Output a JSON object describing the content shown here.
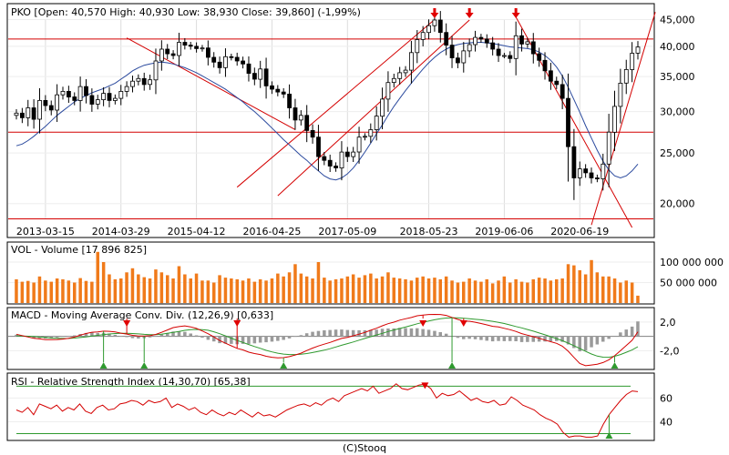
{
  "symbol": "PKO",
  "footer": "(C)Stooq",
  "chart_data": [
    {
      "type": "candlestick",
      "title": "PKO [Open: 40,570  High: 40,930  Low: 38,930  Close: 39,860] (-1,99%)",
      "x_ticks": [
        "2013-03-15",
        "2014-03-29",
        "2015-04-12",
        "2016-04-25",
        "2017-05-09",
        "2018-05-23",
        "2019-06-06",
        "2020-06-19"
      ],
      "y_ticks": [
        "20000",
        "25000",
        "30000",
        "35000",
        "40000",
        "45000"
      ],
      "y_tick_labels": [
        "20,000",
        "25,000",
        "30,000",
        "35,000",
        "40,000",
        "45,000"
      ],
      "y_scale": "log",
      "ylim": [
        18000,
        47500
      ],
      "horizontal_levels": [
        41300,
        27400,
        18700
      ],
      "candles_close": [
        29800,
        29200,
        30500,
        29000,
        31500,
        30800,
        30200,
        32300,
        32800,
        32000,
        31500,
        33500,
        32200,
        31000,
        31600,
        32500,
        31500,
        31800,
        32800,
        33500,
        34300,
        34700,
        33800,
        34500,
        37500,
        39500,
        38700,
        38400,
        40700,
        40200,
        40000,
        39600,
        39700,
        38100,
        37300,
        36400,
        38200,
        38100,
        37500,
        37000,
        35500,
        34600,
        36200,
        33600,
        33100,
        32700,
        32400,
        30500,
        28900,
        29500,
        27600,
        26800,
        24600,
        24200,
        23600,
        23400,
        25100,
        24600,
        25100,
        26800,
        26900,
        27700,
        29400,
        31700,
        34100,
        34700,
        35600,
        36000,
        38900,
        41200,
        42500,
        43800,
        44900,
        42500,
        40200,
        38000,
        37200,
        39200,
        40300,
        41600,
        41300,
        40600,
        39500,
        38400,
        38400,
        37900,
        41900,
        40400,
        40800,
        38700,
        37600,
        35900,
        34300,
        33800,
        31800,
        25700,
        22400,
        23300,
        22900,
        22400,
        22300,
        23800,
        27400,
        30700,
        34000,
        36100,
        38800,
        39860
      ],
      "series": [
        {
          "name": "MA",
          "values": [
            25800,
            26000,
            26400,
            26900,
            27500,
            28100,
            28800,
            29500,
            30100,
            30700,
            31300,
            31800,
            32200,
            32600,
            32900,
            33200,
            33600,
            34000,
            34600,
            35200,
            35900,
            36400,
            36800,
            37000,
            37200,
            37300,
            37200,
            37000,
            36700,
            36400,
            36000,
            35600,
            35100,
            34600,
            34100,
            33600,
            33100,
            32500,
            31900,
            31300,
            30600,
            30000,
            29300,
            28600,
            27900,
            27200,
            26500,
            25900,
            25300,
            24700,
            24200,
            23600,
            23100,
            22600,
            22300,
            22200,
            22400,
            22800,
            23400,
            24200,
            25100,
            26100,
            27200,
            28300,
            29500,
            30700,
            31800,
            32900,
            34000,
            35100,
            36200,
            37200,
            38100,
            38900,
            39500,
            40000,
            40300,
            40500,
            40600,
            40700,
            40700,
            40600,
            40500,
            40300,
            40100,
            39900,
            39800,
            39700,
            39600,
            39400,
            39000,
            38400,
            37600,
            36500,
            35100,
            33400,
            31600,
            29900,
            28200,
            26700,
            25300,
            24100,
            23200,
            22600,
            22400,
            22600,
            23100,
            23800
          ]
        }
      ],
      "trendlines": [
        {
          "from_index": 19,
          "from_value": 41500,
          "to_index": 48,
          "to_value": 27700
        },
        {
          "from_index": 38,
          "from_value": 21500,
          "to_index": 72,
          "to_value": 45000
        },
        {
          "from_index": 45,
          "from_value": 20700,
          "to_index": 78,
          "to_value": 44900
        },
        {
          "from_index": 86,
          "from_value": 45500,
          "to_index": 106,
          "to_value": 18000
        },
        {
          "from_index": 99,
          "from_value": 18200,
          "to_index": 110,
          "to_value": 46500
        }
      ],
      "markers": [
        {
          "index": 72,
          "shape": "down-arrow"
        },
        {
          "index": 78,
          "shape": "down-arrow"
        },
        {
          "index": 86,
          "shape": "down-arrow"
        }
      ],
      "colors": {
        "up": "#ffffff",
        "down": "#000000",
        "ma": "#2b4a9e",
        "trend": "#d40000",
        "level": "#d40000",
        "marker": "#e00000"
      }
    },
    {
      "type": "bar",
      "title": "VOL - Volume [17 896 825]",
      "y_ticks": [
        50000000,
        100000000
      ],
      "y_tick_labels": [
        "50 000 000",
        "100 000 000"
      ],
      "ylim": [
        0,
        140000000
      ],
      "values": [
        58000000,
        52000000,
        54000000,
        50000000,
        65000000,
        55000000,
        52000000,
        60000000,
        58000000,
        55000000,
        50000000,
        61000000,
        54000000,
        52000000,
        125000000,
        100000000,
        70000000,
        58000000,
        60000000,
        75000000,
        85000000,
        70000000,
        63000000,
        60000000,
        82000000,
        75000000,
        68000000,
        60000000,
        90000000,
        70000000,
        60000000,
        72000000,
        55000000,
        55000000,
        50000000,
        68000000,
        62000000,
        60000000,
        58000000,
        55000000,
        60000000,
        52000000,
        58000000,
        55000000,
        60000000,
        72000000,
        65000000,
        75000000,
        95000000,
        72000000,
        65000000,
        60000000,
        100000000,
        62000000,
        55000000,
        58000000,
        60000000,
        65000000,
        70000000,
        62000000,
        68000000,
        72000000,
        60000000,
        65000000,
        75000000,
        62000000,
        60000000,
        58000000,
        55000000,
        62000000,
        65000000,
        60000000,
        62000000,
        58000000,
        65000000,
        55000000,
        50000000,
        52000000,
        60000000,
        55000000,
        52000000,
        58000000,
        48000000,
        55000000,
        65000000,
        50000000,
        58000000,
        52000000,
        50000000,
        58000000,
        62000000,
        60000000,
        55000000,
        58000000,
        60000000,
        95000000,
        92000000,
        80000000,
        70000000,
        105000000,
        75000000,
        65000000,
        65000000,
        60000000,
        50000000,
        55000000,
        50000000,
        17896825
      ],
      "colors": {
        "bar": "#f07a1a"
      }
    },
    {
      "type": "line",
      "title": "MACD - Moving Average Conv. Div. (12,26,9) [0,633]",
      "y_ticks": [
        2,
        -2
      ],
      "y_tick_labels": [
        "2,0",
        "-2,0"
      ],
      "ylim": [
        -4.5,
        3.5
      ],
      "series": [
        {
          "name": "MACD",
          "values": [
            0.29,
            0.1,
            -0.09,
            -0.29,
            -0.36,
            -0.46,
            -0.48,
            -0.45,
            -0.38,
            -0.27,
            -0.11,
            0.16,
            0.39,
            0.57,
            0.61,
            0.72,
            0.69,
            0.6,
            0.44,
            0.31,
            0.14,
            0.04,
            0.03,
            0.09,
            0.26,
            0.55,
            0.88,
            1.21,
            1.35,
            1.45,
            1.32,
            1.1,
            0.75,
            0.36,
            -0.08,
            -0.59,
            -0.97,
            -1.32,
            -1.68,
            -1.9,
            -2.21,
            -2.41,
            -2.55,
            -2.78,
            -2.92,
            -3.0,
            -2.98,
            -2.84,
            -2.61,
            -2.35,
            -1.98,
            -1.64,
            -1.35,
            -1.1,
            -0.85,
            -0.56,
            -0.3,
            -0.14,
            0.07,
            0.3,
            0.54,
            0.84,
            1.12,
            1.47,
            1.76,
            1.98,
            2.26,
            2.44,
            2.62,
            2.87,
            2.96,
            3.04,
            3.06,
            3.04,
            2.91,
            2.64,
            2.36,
            2.12,
            2.1,
            1.96,
            1.79,
            1.6,
            1.39,
            1.3,
            1.11,
            0.92,
            0.68,
            0.37,
            0.16,
            -0.06,
            -0.27,
            -0.52,
            -0.75,
            -0.98,
            -1.38,
            -2.07,
            -2.95,
            -3.8,
            -4.1,
            -4.0,
            -3.89,
            -3.66,
            -3.28,
            -2.71,
            -2.01,
            -1.28,
            -0.56,
            0.63
          ]
        },
        {
          "name": "Signal",
          "values": [
            0.07,
            0.04,
            0.01,
            -0.03,
            -0.1,
            -0.16,
            -0.24,
            -0.28,
            -0.31,
            -0.3,
            -0.25,
            -0.17,
            -0.08,
            0.04,
            0.14,
            0.24,
            0.32,
            0.39,
            0.42,
            0.42,
            0.39,
            0.34,
            0.28,
            0.24,
            0.24,
            0.3,
            0.41,
            0.54,
            0.68,
            0.83,
            0.93,
            0.96,
            0.93,
            0.84,
            0.63,
            0.36,
            0.06,
            -0.26,
            -0.57,
            -0.85,
            -1.15,
            -1.43,
            -1.68,
            -1.96,
            -2.18,
            -2.36,
            -2.48,
            -2.55,
            -2.55,
            -2.51,
            -2.41,
            -2.27,
            -2.1,
            -1.93,
            -1.73,
            -1.49,
            -1.25,
            -1.02,
            -0.79,
            -0.54,
            -0.3,
            -0.05,
            0.19,
            0.42,
            0.67,
            0.88,
            1.09,
            1.29,
            1.52,
            1.75,
            1.95,
            2.13,
            2.3,
            2.46,
            2.55,
            2.58,
            2.57,
            2.52,
            2.44,
            2.37,
            2.3,
            2.21,
            2.09,
            1.95,
            1.78,
            1.58,
            1.37,
            1.17,
            0.95,
            0.72,
            0.47,
            0.21,
            -0.06,
            -0.32,
            -0.61,
            -0.94,
            -1.31,
            -1.71,
            -2.1,
            -2.47,
            -2.76,
            -2.91,
            -2.92,
            -2.78,
            -2.55,
            -2.23,
            -1.91,
            -1.45
          ]
        }
      ],
      "up_markers": [
        15,
        22,
        46,
        75,
        103
      ],
      "down_markers": [
        19,
        38,
        70,
        77
      ],
      "colors": {
        "macd": "#d40000",
        "signal": "#2f9a2f",
        "hist": "#9a9a9a",
        "zero": "#808080",
        "up_marker": "#2f9a2f",
        "down_marker": "#e00000"
      }
    },
    {
      "type": "line",
      "title": "RSI - Relative Strength Index (14,30,70) [65,38]",
      "y_ticks": [
        40,
        60
      ],
      "y_tick_labels": [
        "40",
        "60"
      ],
      "ylim": [
        25,
        78
      ],
      "series": [
        {
          "name": "RSI",
          "values": [
            50,
            48,
            52,
            46,
            55,
            53,
            51,
            54,
            49,
            52,
            50,
            55,
            49,
            47,
            52,
            54,
            50,
            51,
            55,
            56,
            58,
            57,
            54,
            58,
            56,
            57,
            60,
            52,
            55,
            53,
            50,
            52,
            48,
            46,
            50,
            47,
            45,
            48,
            46,
            50,
            47,
            44,
            48,
            45,
            46,
            44,
            47,
            50,
            52,
            54,
            55,
            53,
            56,
            54,
            58,
            60,
            57,
            62,
            64,
            66,
            68,
            66,
            70,
            64,
            66,
            68,
            72,
            68,
            67,
            69,
            71,
            71.6,
            68,
            60,
            64,
            62,
            63,
            66,
            62,
            58,
            60,
            57,
            56,
            58,
            54,
            55,
            61,
            58,
            54,
            52,
            50,
            46,
            43,
            41,
            38,
            31,
            27,
            28,
            28,
            27,
            27,
            28,
            38,
            46,
            52,
            58,
            63,
            66,
            65.38
          ]
        }
      ],
      "down_markers": [
        71
      ],
      "up_markers": [
        103
      ],
      "colors": {
        "rsi": "#d40000",
        "guide": "#2f9a2f",
        "down_marker": "#e00000",
        "up_marker": "#2f9a2f"
      }
    }
  ]
}
